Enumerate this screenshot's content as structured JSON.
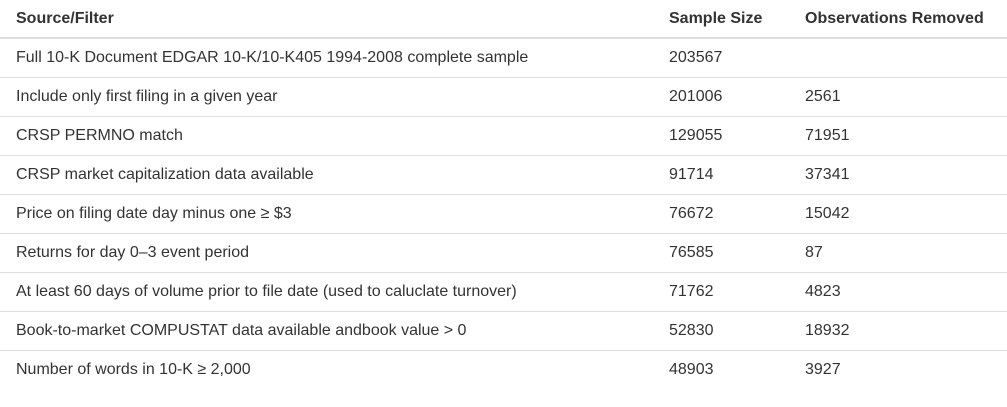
{
  "table": {
    "headers": [
      "Source/Filter",
      "Sample Size",
      "Observations Removed"
    ],
    "rows": [
      [
        "Full 10-K Document EDGAR 10-K/10-K405 1994-2008 complete sample",
        "203567",
        ""
      ],
      [
        "Include only first filing in a given year",
        "201006",
        "2561"
      ],
      [
        "CRSP PERMNO match",
        "129055",
        "71951"
      ],
      [
        "CRSP market capitalization data available",
        "91714",
        "37341"
      ],
      [
        "Price on filing date day minus one ≥ $3",
        "76672",
        "15042"
      ],
      [
        "Returns for day 0–3 event period",
        "76585",
        "87"
      ],
      [
        "At least 60 days of volume prior to file date (used to caluclate turnover)",
        "71762",
        "4823"
      ],
      [
        "Book-to-market COMPUSTAT data available andbook value > 0",
        "52830",
        "18932"
      ],
      [
        "Number of words in 10-K ≥ 2,000",
        "48903",
        "3927"
      ]
    ]
  }
}
